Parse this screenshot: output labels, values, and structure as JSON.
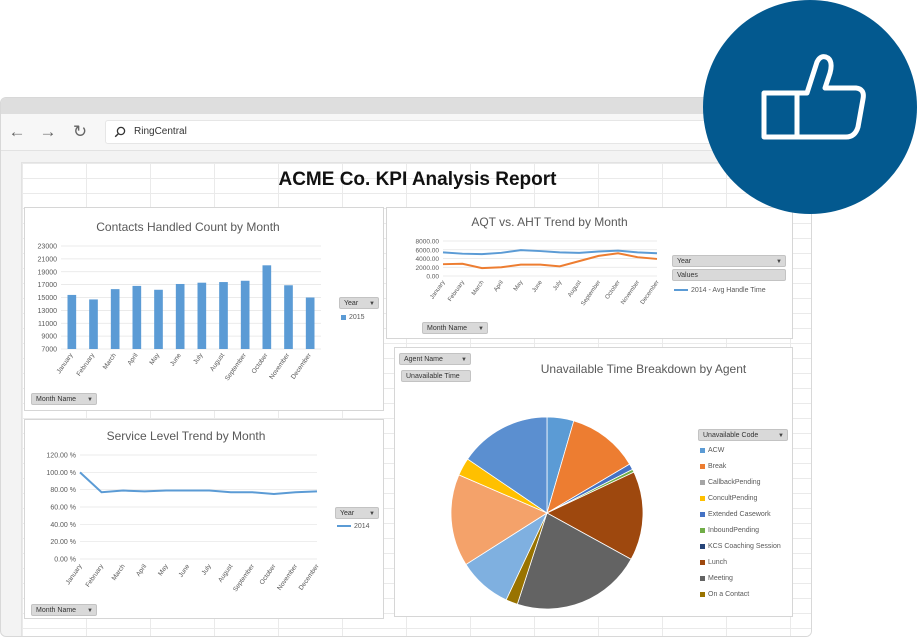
{
  "browser": {
    "address_text": "RingCentral"
  },
  "report": {
    "title": "ACME Co. KPI Analysis Report"
  },
  "colors": {
    "bar": "#5b9bd5",
    "line_blue": "#5b9bd5",
    "line_orange": "#ed7d31",
    "badge": "#03598f"
  },
  "icons": {
    "back": "arrow-left-icon",
    "forward": "arrow-right-icon",
    "refresh": "refresh-icon",
    "search": "search-icon",
    "thumbs": "thumbs-up-icon",
    "filter": "funnel-icon"
  },
  "contacts": {
    "title": "Contacts Handled Count by Month",
    "filter_label": "Year",
    "legend_label": "2015",
    "month_filter": "Month Name"
  },
  "aqt": {
    "title": "AQT vs. AHT Trend by Month",
    "filter_year": "Year",
    "filter_values": "Values",
    "legend_label": "2014 - Avg Handle Time",
    "month_filter": "Month Name"
  },
  "service": {
    "title": "Service Level Trend by Month",
    "filter_label": "Year",
    "legend_label": "2014",
    "month_filter": "Month Name"
  },
  "unavailable": {
    "title": "Unavailable Time Breakdown by Agent",
    "agent_filter": "Agent Name",
    "value_filter": "Unavailable Time",
    "legend_title": "Unavailable Code",
    "legend": [
      {
        "label": "ACW",
        "color": "#5b9bd5"
      },
      {
        "label": "Break",
        "color": "#ed7d31"
      },
      {
        "label": "CallbackPending",
        "color": "#a5a5a5"
      },
      {
        "label": "ConcultPending",
        "color": "#ffc000"
      },
      {
        "label": "Extended Casework",
        "color": "#4472c4"
      },
      {
        "label": "InboundPending",
        "color": "#70ad47"
      },
      {
        "label": "KCS Coaching Session",
        "color": "#264478"
      },
      {
        "label": "Lunch",
        "color": "#9e480e"
      },
      {
        "label": "Meeting",
        "color": "#636363"
      },
      {
        "label": "On a Contact",
        "color": "#997300"
      }
    ]
  },
  "chart_data": [
    {
      "type": "bar",
      "title": "Contacts Handled Count by Month",
      "categories": [
        "January",
        "February",
        "March",
        "April",
        "May",
        "June",
        "July",
        "August",
        "September",
        "October",
        "November",
        "December"
      ],
      "series": [
        {
          "name": "2015",
          "values": [
            15400,
            14700,
            16300,
            16800,
            16200,
            17100,
            17300,
            17400,
            17600,
            20000,
            16900,
            15000
          ]
        }
      ],
      "ylim": [
        7000,
        23000
      ],
      "yticks": [
        "23000",
        "21000",
        "19000",
        "17000",
        "15000",
        "13000",
        "11000",
        "9000",
        "7000"
      ]
    },
    {
      "type": "line",
      "title": "AQT vs. AHT Trend by Month",
      "categories": [
        "January",
        "February",
        "March",
        "April",
        "May",
        "June",
        "July",
        "August",
        "September",
        "October",
        "November",
        "December"
      ],
      "series": [
        {
          "name": "2014 - Avg Handle Time",
          "color": "#5b9bd5",
          "values": [
            5400,
            5100,
            5000,
            5300,
            5900,
            5700,
            5400,
            5300,
            5600,
            5800,
            5400,
            5200
          ]
        },
        {
          "color": "#ed7d31",
          "values": [
            2700,
            2800,
            1800,
            2000,
            2600,
            2600,
            2200,
            3400,
            4600,
            5200,
            4300,
            3900
          ]
        }
      ],
      "ylim": [
        0,
        8000
      ],
      "yticks": [
        "8000.00",
        "6000.00",
        "4000.00",
        "2000.00",
        "0.00"
      ]
    },
    {
      "type": "line",
      "title": "Service Level Trend by Month",
      "categories": [
        "January",
        "February",
        "March",
        "April",
        "May",
        "June",
        "July",
        "August",
        "September",
        "October",
        "November",
        "December"
      ],
      "series": [
        {
          "name": "2014",
          "color": "#5b9bd5",
          "values": [
            100,
            77,
            79,
            78,
            79,
            79,
            79,
            77,
            77,
            75,
            77,
            78
          ]
        }
      ],
      "ylim": [
        0,
        120
      ],
      "yticks": [
        "120.00 %",
        "100.00 %",
        "80.00 %",
        "60.00 %",
        "40.00 %",
        "20.00 %",
        "0.00 %"
      ]
    },
    {
      "type": "pie",
      "title": "Unavailable Time Breakdown by Agent",
      "slices": [
        {
          "label": "ACW",
          "value": 4.5,
          "color": "#5b9bd5"
        },
        {
          "label": "Break",
          "value": 12,
          "color": "#ed7d31"
        },
        {
          "label": "Extended Casework",
          "value": 1,
          "color": "#4472c4"
        },
        {
          "label": "InboundPending",
          "value": 0.5,
          "color": "#70ad47"
        },
        {
          "label": "Lunch",
          "value": 15,
          "color": "#9e480e"
        },
        {
          "label": "Meeting",
          "value": 22,
          "color": "#636363"
        },
        {
          "label": "On a Contact",
          "value": 2,
          "color": "#997300"
        },
        {
          "label": "ACW",
          "value": 9,
          "color": "#7fb0e0"
        },
        {
          "label": "Break",
          "value": 15.5,
          "color": "#f4a26a"
        },
        {
          "label": "ConcultPending",
          "value": 3,
          "color": "#ffc000"
        },
        {
          "label": "ACW",
          "value": 15.5,
          "color": "#5b8fd0"
        }
      ]
    }
  ]
}
